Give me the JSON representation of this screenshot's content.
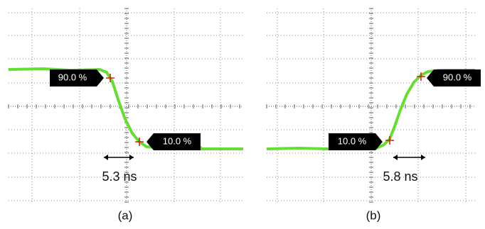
{
  "panels": [
    {
      "caption": "(a)",
      "marker_upper": "90.0 %",
      "marker_lower": "10.0 %",
      "measurement": "5.3 ns"
    },
    {
      "caption": "(b)",
      "marker_upper": "90.0 %",
      "marker_lower": "10.0 %",
      "measurement": "5.8 ns"
    }
  ]
}
